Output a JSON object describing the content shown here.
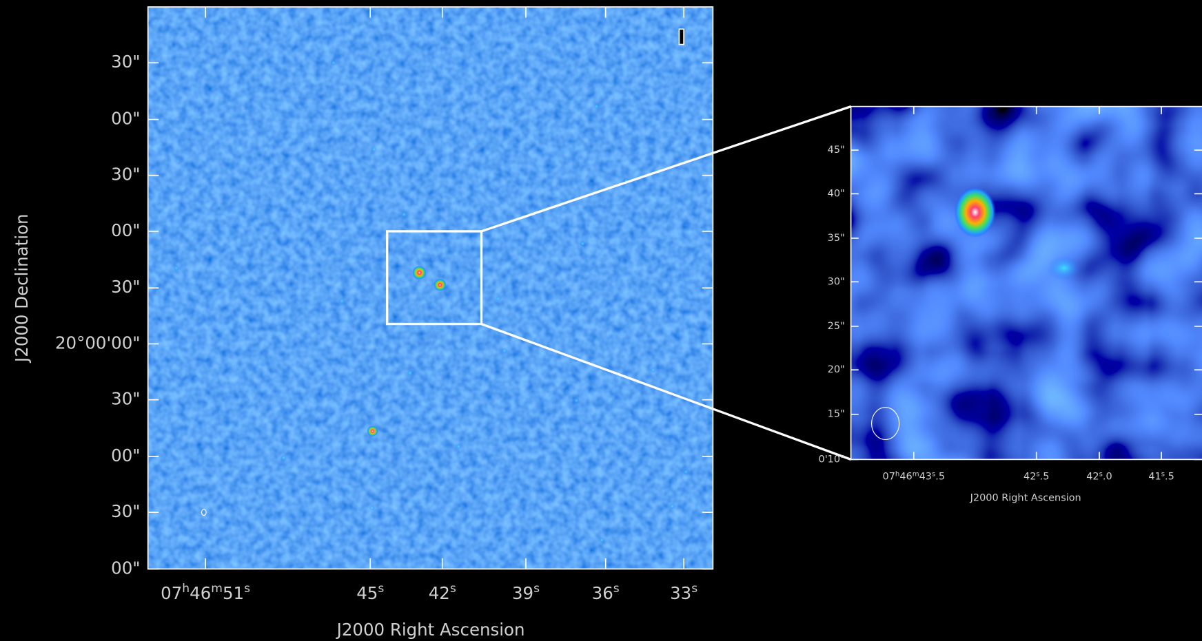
{
  "main": {
    "y_labels": [
      "30\"",
      "00\"",
      "30\"",
      "00\"",
      "30\"",
      "20°00'00\"",
      "30\"",
      "00\"",
      "30\"",
      "00\""
    ],
    "x_labels": [
      [
        "07",
        "h",
        "46",
        "m",
        "51",
        "s"
      ],
      [
        "45",
        "s"
      ],
      [
        "42",
        "s"
      ],
      [
        "39",
        "s"
      ],
      [
        "36",
        "s"
      ],
      [
        "33",
        "s"
      ]
    ],
    "x_title": "J2000 Right Ascension",
    "y_title": "J2000 Declination"
  },
  "inset": {
    "y_labels": [
      "45\"",
      "40\"",
      "35\"",
      "30\"",
      "25\"",
      "20\"",
      "15\"",
      "0'10\""
    ],
    "x_labels": [
      [
        "07",
        "h",
        "46",
        "m",
        "43",
        "s",
        ".5"
      ],
      [
        "42",
        "s",
        ".5"
      ],
      [
        "42",
        "s",
        ".0"
      ],
      [
        "41",
        "s",
        ".5"
      ]
    ],
    "x_title": "J2000 Right Ascension"
  }
}
